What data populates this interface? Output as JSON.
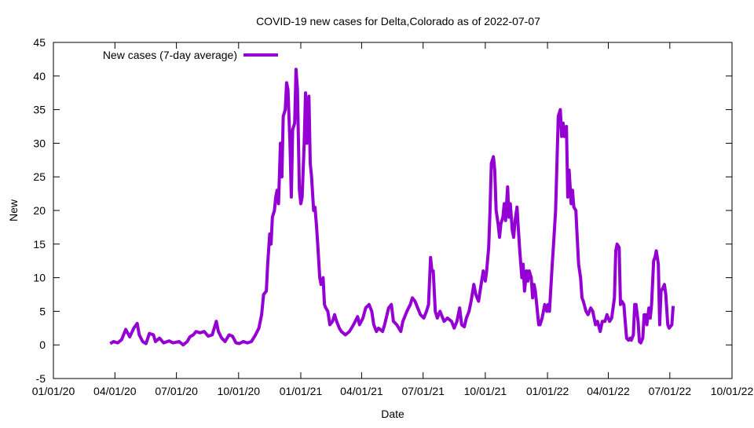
{
  "chart_data": {
    "type": "line",
    "title": "COVID-19 new cases for Delta,Colorado as of 2022-07-07",
    "xlabel": "Date",
    "ylabel": "New",
    "x_units": "days since 2020-01-01",
    "xlim": [
      0,
      1004
    ],
    "ylim": [
      -5,
      45
    ],
    "yticks": [
      -5,
      0,
      5,
      10,
      15,
      20,
      25,
      30,
      35,
      40,
      45
    ],
    "xticks": [
      {
        "value": 0,
        "label": "01/01/20"
      },
      {
        "value": 91,
        "label": "04/01/20"
      },
      {
        "value": 182,
        "label": "07/01/20"
      },
      {
        "value": 274,
        "label": "10/01/20"
      },
      {
        "value": 366,
        "label": "01/01/21"
      },
      {
        "value": 456,
        "label": "04/01/21"
      },
      {
        "value": 547,
        "label": "07/01/21"
      },
      {
        "value": 639,
        "label": "10/01/21"
      },
      {
        "value": 731,
        "label": "01/01/22"
      },
      {
        "value": 821,
        "label": "04/01/22"
      },
      {
        "value": 912,
        "label": "07/01/22"
      },
      {
        "value": 1004,
        "label": "10/01/22"
      }
    ],
    "grid": false,
    "legend_position": "top-left",
    "series": [
      {
        "name": "New cases (7-day average)",
        "color": "#9400d3",
        "x": [
          84,
          89,
          95,
          101,
          107,
          113,
          119,
          124,
          127,
          132,
          137,
          142,
          148,
          151,
          157,
          163,
          171,
          177,
          186,
          192,
          198,
          202,
          207,
          211,
          217,
          223,
          229,
          235,
          241,
          244,
          249,
          254,
          260,
          265,
          270,
          275,
          281,
          287,
          293,
          299,
          304,
          308,
          311,
          315,
          317,
          320,
          322,
          324,
          327,
          329,
          331,
          333,
          336,
          338,
          340,
          343,
          345,
          347,
          350,
          352,
          354,
          357,
          359,
          361,
          364,
          366,
          368,
          371,
          373,
          375,
          378,
          380,
          382,
          385,
          387,
          389,
          391,
          394,
          396,
          399,
          401,
          403,
          406,
          409,
          413,
          416,
          419,
          423,
          426,
          432,
          438,
          444,
          450,
          453,
          458,
          462,
          467,
          471,
          474,
          478,
          481,
          487,
          490,
          496,
          500,
          503,
          508,
          514,
          517,
          523,
          528,
          531,
          535,
          539,
          543,
          548,
          552,
          555,
          558,
          560,
          562,
          565,
          568,
          572,
          578,
          583,
          589,
          593,
          597,
          601,
          604,
          608,
          611,
          615,
          618,
          622,
          625,
          629,
          632,
          636,
          639,
          641,
          644,
          646,
          648,
          651,
          653,
          655,
          658,
          660,
          662,
          665,
          667,
          669,
          672,
          674,
          676,
          679,
          681,
          683,
          686,
          688,
          690,
          693,
          695,
          697,
          700,
          702,
          704,
          707,
          709,
          711,
          713,
          716,
          718,
          720,
          723,
          725,
          727,
          730,
          732,
          734,
          738,
          740,
          743,
          745,
          747,
          750,
          752,
          754,
          756,
          759,
          761,
          763,
          766,
          768,
          770,
          773,
          775,
          777,
          780,
          782,
          784,
          788,
          791,
          795,
          798,
          802,
          805,
          809,
          812,
          816,
          819,
          823,
          826,
          830,
          832,
          834,
          837,
          839,
          841,
          844,
          846,
          848,
          851,
          853,
          855,
          858,
          860,
          862,
          865,
          867,
          869,
          872,
          874,
          876,
          878,
          881,
          883,
          885,
          888,
          890,
          892,
          895,
          897,
          899,
          902,
          904,
          906,
          909,
          911,
          915,
          917
        ],
        "y": [
          0.2,
          0.5,
          0.3,
          0.8,
          2.3,
          1.2,
          2.5,
          3.2,
          1.5,
          0.5,
          0.2,
          1.7,
          1.5,
          0.5,
          1,
          0.3,
          0.6,
          0.3,
          0.5,
          0,
          0.5,
          1.2,
          1.5,
          2,
          1.8,
          2,
          1.3,
          1.5,
          3.5,
          2,
          1,
          0.5,
          1.5,
          1.3,
          0.3,
          0.2,
          0.5,
          0.3,
          0.5,
          1.5,
          2.5,
          4.5,
          7.5,
          8,
          12,
          16.5,
          15,
          19,
          20,
          22,
          23,
          21,
          30,
          25,
          34,
          35,
          39,
          38,
          30,
          22,
          32,
          33,
          41,
          38,
          23,
          21,
          22,
          30,
          37.5,
          30,
          37,
          27,
          25,
          20,
          20.5,
          18,
          15,
          10,
          9,
          10,
          6,
          5.5,
          5,
          3,
          3.5,
          4.5,
          3.5,
          2.5,
          2,
          1.5,
          2,
          3,
          4.2,
          3,
          4,
          5.5,
          6,
          5,
          3,
          2,
          2.5,
          2,
          3,
          5.5,
          6,
          3.5,
          3,
          2,
          3.5,
          5,
          6,
          7,
          6.5,
          5.5,
          4.5,
          4,
          5,
          6,
          13,
          11,
          11,
          5,
          4,
          5,
          3.5,
          4,
          3.5,
          2.5,
          3.5,
          5.5,
          3,
          2.7,
          4,
          5,
          6.5,
          9,
          7.5,
          6.5,
          8.5,
          11,
          9.5,
          11,
          14.5,
          20,
          27,
          28,
          26,
          20,
          18,
          16,
          18,
          19,
          21,
          18.5,
          23.5,
          19,
          21,
          17,
          16,
          18.5,
          20.5,
          17,
          14,
          10,
          12,
          8,
          11,
          9.5,
          11,
          10,
          7,
          9,
          8,
          5,
          3,
          3,
          4,
          5,
          6,
          5,
          6,
          5,
          12,
          15,
          20,
          27,
          34,
          35,
          31,
          33,
          31,
          32.5,
          22,
          26,
          21,
          23,
          20.5,
          20,
          16,
          12,
          10,
          7,
          6.5,
          5,
          4.5,
          5.5,
          5,
          3,
          3.5,
          2,
          3.5,
          3.5,
          4.5,
          3.5,
          4,
          7,
          14,
          15,
          14.5,
          6,
          6.5,
          6,
          3.5,
          1,
          0.7,
          1,
          0.7,
          1.5,
          6,
          6,
          3.5,
          0.5,
          0.3,
          1,
          4.5,
          4.5,
          3,
          5.5,
          4,
          6,
          12.5,
          13,
          14,
          12,
          3,
          8,
          8.5,
          9,
          7.5,
          3,
          2.5,
          3,
          5.8
        ]
      }
    ]
  }
}
